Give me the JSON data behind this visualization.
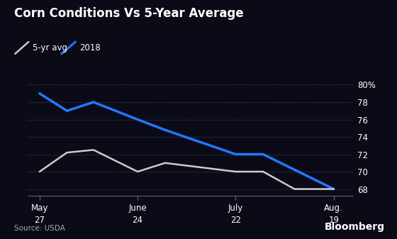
{
  "title": "Corn Conditions Vs 5-Year Average",
  "background_color": "#0b0b18",
  "text_color": "#ffffff",
  "source_text": "Source: USDA",
  "bloomberg_text": "Bloomberg",
  "x_tick_labels": [
    "May\n27",
    "June\n24",
    "July\n22",
    "Aug.\n19"
  ],
  "x_positions": [
    0,
    1,
    2,
    3
  ],
  "ylim": [
    67.2,
    81.5
  ],
  "yticks": [
    68,
    70,
    72,
    74,
    76,
    78,
    80
  ],
  "ytick_labels": [
    "68",
    "70",
    "72",
    "74",
    "76",
    "78",
    "80%"
  ],
  "series_2018": {
    "label": "2018",
    "color": "#2277ff",
    "linewidth": 2.5,
    "x": [
      0,
      0.28,
      0.55,
      1.0,
      1.28,
      2.0,
      2.28,
      3.0
    ],
    "y": [
      79.0,
      77.0,
      78.0,
      76.0,
      74.8,
      72.0,
      72.0,
      68.0
    ]
  },
  "series_avg": {
    "label": "5-yr avg",
    "color": "#cccccc",
    "linewidth": 1.8,
    "x": [
      0,
      0.28,
      0.55,
      1.0,
      1.28,
      2.0,
      2.28,
      2.6,
      3.0
    ],
    "y": [
      70.0,
      72.2,
      72.5,
      70.0,
      71.0,
      70.0,
      70.0,
      68.0,
      68.0
    ]
  },
  "grid_color": "#444466",
  "grid_linestyle": "dotted"
}
